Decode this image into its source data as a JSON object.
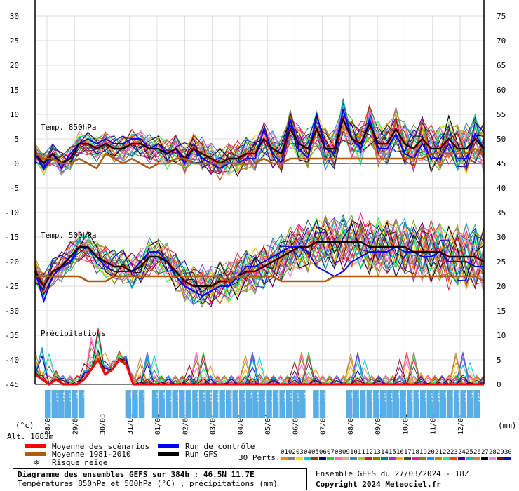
{
  "chart_data": {
    "type": "line",
    "left_axis_ticks": [
      "30",
      "25",
      "20",
      "15",
      "10",
      "5",
      "0",
      "-5",
      "-10",
      "-15",
      "-20",
      "-25",
      "-30",
      "-35",
      "-40",
      "-45"
    ],
    "right_axis_ticks": [
      "75",
      "70",
      "65",
      "60",
      "55",
      "50",
      "45",
      "40",
      "35",
      "30",
      "25",
      "20",
      "15",
      "10",
      "5",
      "0"
    ],
    "left_unit": "(°c)",
    "right_unit": "(mm)",
    "altitude_label": "Alt. 1683m",
    "x_dates": [
      "28/03",
      "29/03",
      "30/03",
      "31/03",
      "01/04",
      "02/04",
      "03/04",
      "04/04",
      "05/04",
      "06/04",
      "07/04",
      "08/04",
      "09/04",
      "10/04",
      "11/04",
      "12/04"
    ],
    "panel_labels": {
      "t850": "Temp. 850hPa",
      "t500": "Temp. 500hPa",
      "precip": "Précipitations"
    },
    "snow_risk_percent": [
      "10%",
      "10%",
      "68%",
      "16%",
      "6%",
      "3%",
      "",
      "",
      "",
      "",
      "",
      "",
      "3%",
      "6%",
      "19%",
      "",
      "3%",
      "6%",
      "13%",
      "32%",
      "52%",
      "77%",
      "58%",
      "29%",
      "23%",
      "35%",
      "26%",
      "10%",
      "10%",
      "13%",
      "6%",
      "23%",
      "16%",
      "13%",
      "10%",
      "13%",
      "10%",
      "13%",
      "6%",
      "",
      "10%",
      "10%",
      "",
      "",
      "",
      "3%",
      "3%",
      "6%",
      "16%",
      "6%",
      "10%",
      "10%",
      "6%",
      "10%",
      "13%",
      "3%",
      "10%",
      "10%",
      "10%",
      "6%",
      "3%",
      "13%",
      "13%",
      "6%",
      "10%"
    ],
    "series": [
      {
        "name": "Moyenne des scénarios",
        "color": "#ff0000",
        "t850": [
          2,
          0,
          2,
          0,
          1,
          4,
          4,
          3,
          4,
          3,
          3,
          4,
          4,
          3,
          3,
          2,
          3,
          1,
          3,
          2,
          1,
          0,
          1,
          1,
          2,
          2,
          5,
          3,
          2,
          7,
          4,
          3,
          7,
          3,
          3,
          9,
          5,
          4,
          8,
          4,
          4,
          7,
          4,
          3,
          5,
          3,
          3,
          5,
          3,
          3,
          5,
          3
        ],
        "t500": [
          -22,
          -25,
          -22,
          -21,
          -19,
          -17,
          -17,
          -19,
          -20,
          -21,
          -21,
          -22,
          -21,
          -19,
          -19,
          -20,
          -22,
          -24,
          -25,
          -25,
          -25,
          -24,
          -24,
          -23,
          -22,
          -22,
          -21,
          -20,
          -19,
          -18,
          -17,
          -17,
          -16,
          -16,
          -16,
          -16,
          -16,
          -16,
          -17,
          -17,
          -17,
          -17,
          -17,
          -18,
          -18,
          -18,
          -18,
          -19,
          -19,
          -19,
          -19,
          -20
        ]
      },
      {
        "name": "Run de contrôle",
        "color": "#0000ff",
        "t850": [
          2,
          -1,
          2,
          -1,
          2,
          4,
          5,
          4,
          5,
          4,
          4,
          5,
          5,
          3,
          4,
          2,
          3,
          0,
          3,
          1,
          0,
          -1,
          0,
          0,
          1,
          1,
          7,
          2,
          0,
          9,
          3,
          1,
          10,
          3,
          2,
          11,
          5,
          3,
          9,
          3,
          3,
          6,
          2,
          1,
          4,
          1,
          1,
          4,
          1,
          1,
          6,
          3
        ],
        "t500": [
          -22,
          -28,
          -23,
          -21,
          -20,
          -17,
          -17,
          -19,
          -21,
          -22,
          -22,
          -22,
          -20,
          -18,
          -18,
          -20,
          -23,
          -25,
          -26,
          -27,
          -26,
          -25,
          -25,
          -23,
          -21,
          -21,
          -20,
          -19,
          -18,
          -17,
          -17,
          -18,
          -21,
          -22,
          -23,
          -22,
          -20,
          -19,
          -18,
          -18,
          -18,
          -17,
          -18,
          -18,
          -19,
          -19,
          -18,
          -20,
          -20,
          -20,
          -21,
          -21
        ]
      },
      {
        "name": "Run GFS",
        "color": "#000000",
        "t850": [
          2,
          0,
          2,
          0,
          1,
          4,
          4,
          3,
          4,
          3,
          3,
          4,
          4,
          3,
          3,
          2,
          3,
          1,
          3,
          2,
          1,
          0,
          1,
          1,
          2,
          2,
          5,
          3,
          2,
          7,
          4,
          3,
          7,
          3,
          3,
          9,
          5,
          4,
          8,
          4,
          4,
          7,
          4,
          3,
          5,
          3,
          3,
          5,
          3,
          3,
          5,
          3
        ],
        "t500": [
          -22,
          -25,
          -22,
          -21,
          -19,
          -17,
          -17,
          -19,
          -20,
          -21,
          -21,
          -22,
          -21,
          -19,
          -19,
          -20,
          -22,
          -24,
          -25,
          -25,
          -25,
          -24,
          -24,
          -23,
          -22,
          -22,
          -21,
          -20,
          -19,
          -18,
          -17,
          -17,
          -16,
          -16,
          -16,
          -16,
          -16,
          -16,
          -17,
          -17,
          -17,
          -17,
          -17,
          -18,
          -18,
          -18,
          -18,
          -19,
          -19,
          -19,
          -19,
          -20
        ]
      },
      {
        "name": "Moyenne 1981-2010",
        "color": "#b05a10",
        "t850": [
          2,
          1,
          1,
          0,
          0,
          1,
          0,
          -1,
          2,
          1,
          0,
          1,
          0,
          -1,
          0,
          0,
          1,
          1,
          0,
          0,
          0,
          0,
          0,
          0,
          0,
          0,
          1,
          0,
          0,
          1,
          1,
          1,
          1,
          1,
          1,
          1,
          1,
          1,
          1,
          1,
          1,
          1,
          1,
          1,
          1,
          2,
          2,
          2,
          2,
          2,
          3,
          2
        ],
        "t500": [
          -23,
          -23,
          -23,
          -23,
          -23,
          -23,
          -24,
          -24,
          -24,
          -23,
          -23,
          -23,
          -23,
          -23,
          -23,
          -23,
          -23,
          -23,
          -23,
          -23,
          -23,
          -23,
          -24,
          -23,
          -23,
          -23,
          -23,
          -23,
          -24,
          -24,
          -24,
          -24,
          -24,
          -24,
          -23,
          -23,
          -23,
          -23,
          -23,
          -23,
          -23,
          -23,
          -23,
          -23,
          -23,
          -23,
          -23,
          -23,
          -23,
          -23,
          -23,
          -24
        ]
      }
    ],
    "precip_mean": [
      2,
      1,
      0,
      1,
      0,
      0,
      0,
      1,
      3,
      5,
      2,
      3,
      5,
      4,
      0,
      0,
      0,
      0,
      0,
      0,
      0,
      0,
      0,
      0,
      0,
      0,
      0,
      0,
      0,
      0,
      0,
      0,
      0,
      0,
      0,
      0,
      0,
      0,
      0,
      0,
      0,
      0,
      0,
      0,
      0,
      0,
      0,
      0,
      0,
      0,
      0,
      0,
      0,
      0,
      0,
      0,
      0,
      0,
      0,
      0,
      0,
      0,
      0,
      0,
      0
    ]
  },
  "legend": {
    "mean": "Moyenne des scénarios",
    "clim": "Moyenne 1981-2010",
    "snow": "Risque neige",
    "control": "Run de contrôle",
    "gfs": "Run GFS",
    "perts_label": "30 Perts.",
    "perts": [
      "01",
      "02",
      "03",
      "04",
      "05",
      "06",
      "07",
      "08",
      "09",
      "10",
      "11",
      "12",
      "13",
      "14",
      "15",
      "16",
      "17",
      "18",
      "19",
      "20",
      "21",
      "22",
      "23",
      "24",
      "25",
      "26",
      "27",
      "28",
      "29",
      "30"
    ],
    "pert_colors": [
      "#ff8c00",
      "#808080",
      "#ffd700",
      "#00ced1",
      "#8b4513",
      "#000080",
      "#32cd32",
      "#ff69b4",
      "#d2b48c",
      "#4682b4",
      "#9acd32",
      "#dc143c",
      "#808000",
      "#008080",
      "#9932cc",
      "#ffa500",
      "#2f4f4f",
      "#ff1493",
      "#6b8e23",
      "#1e90ff",
      "#b8860b",
      "#00ff7f",
      "#ff4500",
      "#4b0082",
      "#20b2aa",
      "#cd853f",
      "#000000",
      "#ee82ee",
      "#8b0000",
      "#0000cd"
    ]
  },
  "footer": {
    "title": "Diagramme des ensembles GEFS sur 384h : 46.5N 11.7E",
    "subtitle": "Températures 850hPa et 500hPa (°C) , précipitations (mm)",
    "run": "Ensemble GEFS du 27/03/2024 - 18Z",
    "copyright": "Copyright 2024 Meteociel.fr"
  }
}
